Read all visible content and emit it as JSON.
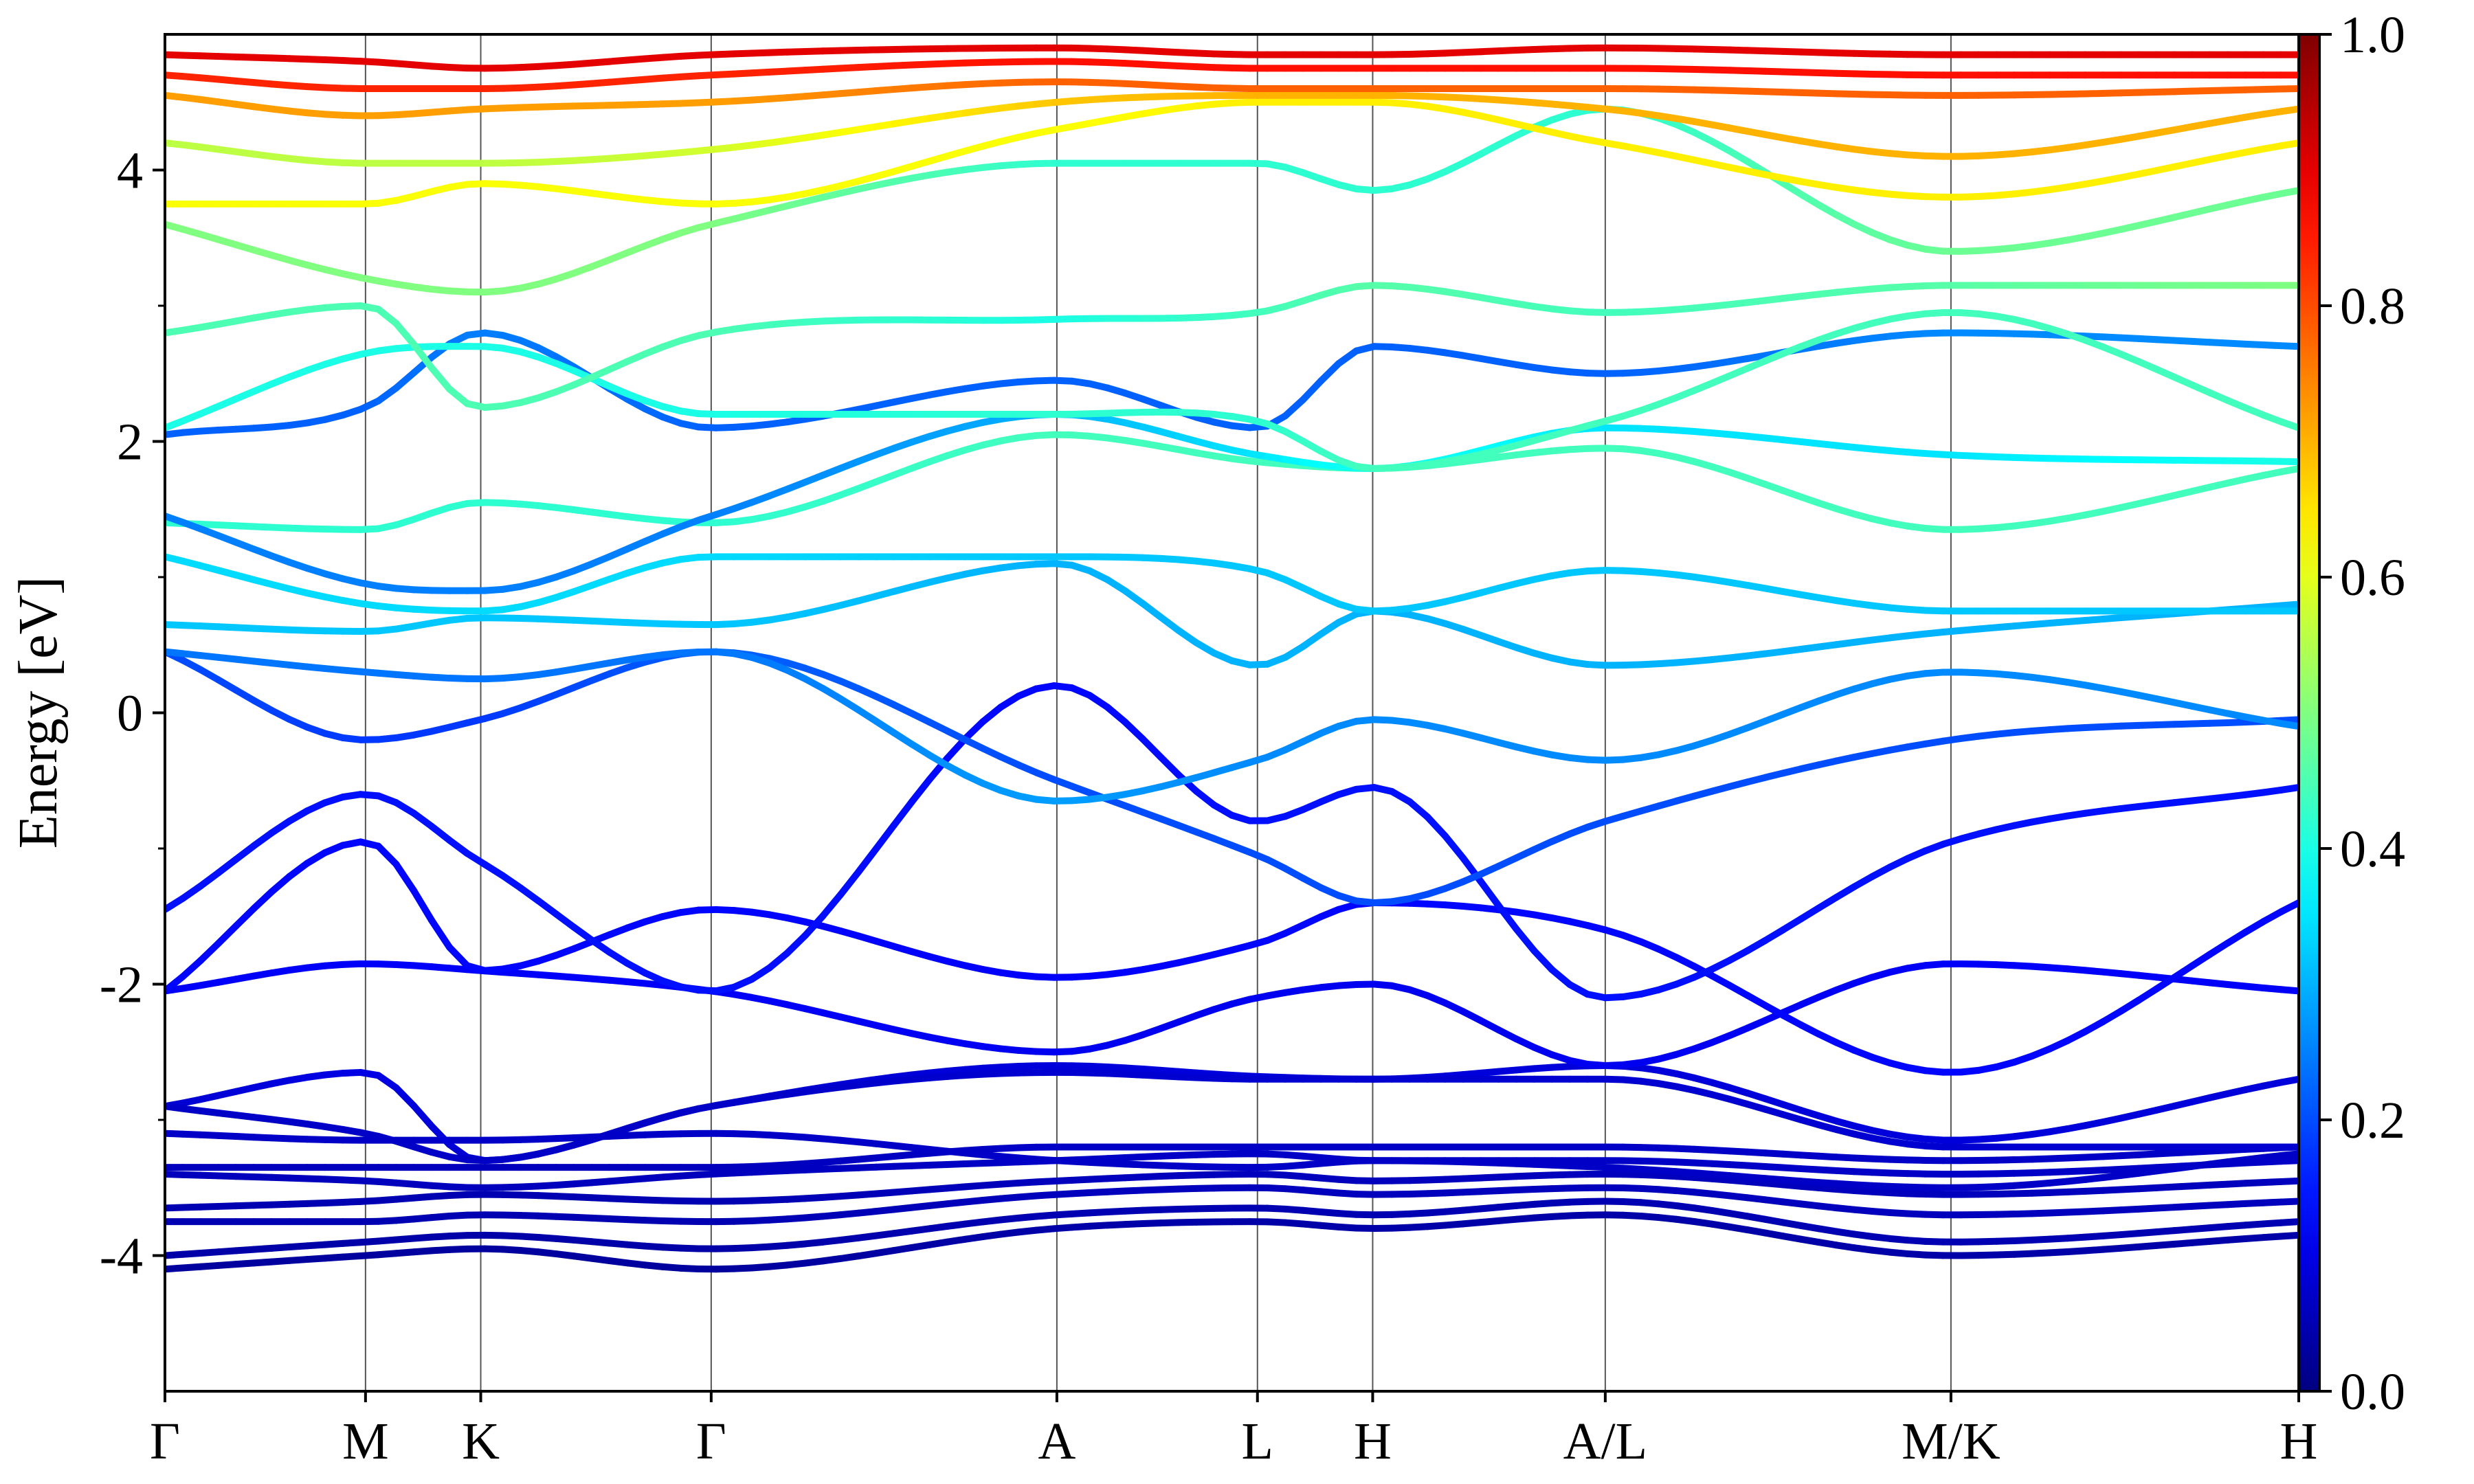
{
  "chart_data": {
    "type": "line",
    "title": "",
    "xlabel": "",
    "ylabel": "Energy [eV]",
    "ylim": [
      -5,
      5
    ],
    "yticks": [
      {
        "value": 4,
        "label": "4"
      },
      {
        "value": 2,
        "label": "2"
      },
      {
        "value": 0,
        "label": "0"
      },
      {
        "value": -2,
        "label": "-2"
      },
      {
        "value": -4,
        "label": "-4"
      }
    ],
    "yminor_ticks": [
      3,
      1,
      -1,
      -3
    ],
    "kpath": [
      {
        "label": "Γ",
        "position": 0.0
      },
      {
        "label": "M",
        "position": 0.094
      },
      {
        "label": "K",
        "position": 0.148
      },
      {
        "label": "Γ",
        "position": 0.256
      },
      {
        "label": "A",
        "position": 0.418
      },
      {
        "label": "L",
        "position": 0.512
      },
      {
        "label": "H",
        "position": 0.566
      },
      {
        "label": "A/L",
        "position": 0.675
      },
      {
        "label": "M/K",
        "position": 0.837
      },
      {
        "label": "H",
        "position": 1.0
      }
    ],
    "colorbar": {
      "colormap": "jet",
      "range": [
        0.0,
        1.0
      ],
      "ticks": [
        {
          "value": 0.0,
          "label": "0.0"
        },
        {
          "value": 0.2,
          "label": "0.2"
        },
        {
          "value": 0.4,
          "label": "0.4"
        },
        {
          "value": 0.6,
          "label": "0.6"
        },
        {
          "value": 0.8,
          "label": "0.8"
        },
        {
          "value": 1.0,
          "label": "1.0"
        }
      ]
    },
    "bands": [
      {
        "k": [
          0,
          0.094,
          0.148,
          0.256,
          0.418,
          0.512,
          0.566,
          0.675,
          0.837,
          1.0
        ],
        "e": [
          -4.1,
          -4.0,
          -3.95,
          -4.1,
          -3.8,
          -3.75,
          -3.8,
          -3.7,
          -4.0,
          -3.85
        ],
        "c": [
          0.03,
          0.03,
          0.03,
          0.03,
          0.04,
          0.04,
          0.04,
          0.04,
          0.04,
          0.04
        ]
      },
      {
        "k": [
          0,
          0.094,
          0.148,
          0.256,
          0.418,
          0.512,
          0.566,
          0.675,
          0.837,
          1.0
        ],
        "e": [
          -4.0,
          -3.9,
          -3.85,
          -3.95,
          -3.7,
          -3.65,
          -3.7,
          -3.6,
          -3.9,
          -3.75
        ],
        "c": [
          0.04,
          0.04,
          0.04,
          0.04,
          0.05,
          0.05,
          0.05,
          0.05,
          0.05,
          0.05
        ]
      },
      {
        "k": [
          0,
          0.094,
          0.148,
          0.256,
          0.418,
          0.512,
          0.566,
          0.675,
          0.837,
          1.0
        ],
        "e": [
          -3.75,
          -3.75,
          -3.7,
          -3.75,
          -3.55,
          -3.5,
          -3.55,
          -3.5,
          -3.7,
          -3.6
        ],
        "c": [
          0.05,
          0.05,
          0.05,
          0.05,
          0.06,
          0.06,
          0.06,
          0.06,
          0.06,
          0.06
        ]
      },
      {
        "k": [
          0,
          0.094,
          0.148,
          0.256,
          0.418,
          0.512,
          0.566,
          0.675,
          0.837,
          1.0
        ],
        "e": [
          -3.65,
          -3.6,
          -3.55,
          -3.6,
          -3.45,
          -3.4,
          -3.45,
          -3.4,
          -3.55,
          -3.45
        ],
        "c": [
          0.05,
          0.05,
          0.05,
          0.05,
          0.06,
          0.06,
          0.06,
          0.06,
          0.06,
          0.06
        ]
      },
      {
        "k": [
          0,
          0.094,
          0.148,
          0.256,
          0.418,
          0.512,
          0.566,
          0.675,
          0.837,
          1.0
        ],
        "e": [
          -3.4,
          -3.45,
          -3.5,
          -3.4,
          -3.3,
          -3.25,
          -3.3,
          -3.3,
          -3.4,
          -3.3
        ],
        "c": [
          0.06,
          0.06,
          0.06,
          0.06,
          0.07,
          0.07,
          0.07,
          0.07,
          0.07,
          0.07
        ]
      },
      {
        "k": [
          0,
          0.094,
          0.148,
          0.256,
          0.418,
          0.512,
          0.566,
          0.675,
          0.837,
          1.0
        ],
        "e": [
          -3.35,
          -3.35,
          -3.35,
          -3.35,
          -3.2,
          -3.2,
          -3.2,
          -3.2,
          -3.3,
          -3.2
        ],
        "c": [
          0.06,
          0.06,
          0.06,
          0.06,
          0.07,
          0.07,
          0.07,
          0.07,
          0.07,
          0.07
        ]
      },
      {
        "k": [
          0,
          0.094,
          0.148,
          0.256,
          0.418,
          0.512,
          0.566,
          0.675,
          0.837,
          1.0
        ],
        "e": [
          -3.1,
          -3.15,
          -3.15,
          -3.1,
          -3.3,
          -3.35,
          -3.3,
          -3.35,
          -3.5,
          -3.25
        ],
        "c": [
          0.07,
          0.07,
          0.07,
          0.07,
          0.07,
          0.07,
          0.07,
          0.07,
          0.07,
          0.07
        ]
      },
      {
        "k": [
          0,
          0.094,
          0.148,
          0.256,
          0.418,
          0.512,
          0.566,
          0.675,
          0.837,
          1.0
        ],
        "e": [
          -2.9,
          -2.65,
          -3.3,
          -2.9,
          -2.6,
          -2.68,
          -2.7,
          -2.6,
          -3.15,
          -2.7
        ],
        "c": [
          0.08,
          0.1,
          0.08,
          0.08,
          0.09,
          0.09,
          0.09,
          0.09,
          0.09,
          0.09
        ]
      },
      {
        "k": [
          0,
          0.094,
          0.148,
          0.256,
          0.418,
          0.512,
          0.566,
          0.675,
          0.837,
          1.0
        ],
        "e": [
          -2.9,
          -3.1,
          -3.3,
          -2.9,
          -2.65,
          -2.7,
          -2.7,
          -2.7,
          -3.2,
          -3.2
        ],
        "c": [
          0.07,
          0.07,
          0.07,
          0.07,
          0.08,
          0.08,
          0.08,
          0.08,
          0.08,
          0.08
        ]
      },
      {
        "k": [
          0,
          0.094,
          0.148,
          0.256,
          0.418,
          0.512,
          0.566,
          0.675,
          0.837,
          1.0
        ],
        "e": [
          -2.05,
          -1.85,
          -1.9,
          -2.05,
          -2.5,
          -2.1,
          -2.0,
          -2.6,
          -1.85,
          -2.05
        ],
        "c": [
          0.12,
          0.12,
          0.12,
          0.12,
          0.11,
          0.11,
          0.11,
          0.11,
          0.12,
          0.12
        ]
      },
      {
        "k": [
          0,
          0.094,
          0.148,
          0.256,
          0.418,
          0.512,
          0.566,
          0.675,
          0.837,
          1.0
        ],
        "e": [
          -2.05,
          -0.95,
          -1.9,
          -1.45,
          -1.95,
          -1.7,
          -1.4,
          -1.6,
          -2.65,
          -1.4
        ],
        "c": [
          0.13,
          0.13,
          0.13,
          0.13,
          0.12,
          0.13,
          0.13,
          0.13,
          0.13,
          0.13
        ]
      },
      {
        "k": [
          0,
          0.094,
          0.148,
          0.256,
          0.418,
          0.512,
          0.566,
          0.675,
          0.837,
          1.0
        ],
        "e": [
          -1.45,
          -0.6,
          -1.1,
          -2.05,
          0.2,
          -0.8,
          -0.55,
          -2.1,
          -0.95,
          -0.55
        ],
        "c": [
          0.14,
          0.14,
          0.14,
          0.14,
          0.13,
          0.14,
          0.14,
          0.14,
          0.14,
          0.14
        ]
      },
      {
        "k": [
          0,
          0.094,
          0.148,
          0.256,
          0.418,
          0.512,
          0.566,
          0.675,
          0.837,
          1.0
        ],
        "e": [
          0.45,
          -0.2,
          -0.05,
          0.45,
          -0.5,
          -1.05,
          -1.4,
          -0.8,
          -0.2,
          -0.05
        ],
        "c": [
          0.2,
          0.18,
          0.18,
          0.22,
          0.2,
          0.2,
          0.2,
          0.2,
          0.2,
          0.2
        ]
      },
      {
        "k": [
          0,
          0.094,
          0.148,
          0.256,
          0.418,
          0.512,
          0.566,
          0.675,
          0.837,
          1.0
        ],
        "e": [
          0.45,
          0.3,
          0.25,
          0.45,
          -0.65,
          -0.35,
          -0.05,
          -0.35,
          0.3,
          -0.1
        ],
        "c": [
          0.24,
          0.24,
          0.24,
          0.24,
          0.28,
          0.26,
          0.26,
          0.26,
          0.26,
          0.26
        ]
      },
      {
        "k": [
          0,
          0.094,
          0.148,
          0.256,
          0.418,
          0.512,
          0.566,
          0.675,
          0.837,
          1.0
        ],
        "e": [
          0.65,
          0.6,
          0.7,
          0.65,
          1.1,
          0.35,
          0.75,
          0.35,
          0.6,
          0.8
        ],
        "c": [
          0.32,
          0.32,
          0.32,
          0.32,
          0.3,
          0.3,
          0.3,
          0.3,
          0.3,
          0.3
        ]
      },
      {
        "k": [
          0,
          0.094,
          0.148,
          0.256,
          0.418,
          0.512,
          0.566,
          0.675,
          0.837,
          1.0
        ],
        "e": [
          1.15,
          0.8,
          0.75,
          1.15,
          1.15,
          1.05,
          0.75,
          1.05,
          0.75,
          0.75
        ],
        "c": [
          0.34,
          0.34,
          0.34,
          0.34,
          0.32,
          0.32,
          0.32,
          0.32,
          0.32,
          0.32
        ]
      },
      {
        "k": [
          0,
          0.094,
          0.148,
          0.256,
          0.418,
          0.512,
          0.566,
          0.675,
          0.837,
          1.0
        ],
        "e": [
          1.4,
          1.35,
          1.55,
          1.4,
          2.05,
          1.85,
          1.8,
          1.95,
          1.35,
          1.8
        ],
        "c": [
          0.42,
          0.42,
          0.42,
          0.42,
          0.44,
          0.44,
          0.44,
          0.44,
          0.44,
          0.44
        ]
      },
      {
        "k": [
          0,
          0.094,
          0.148,
          0.256,
          0.418,
          0.512,
          0.566,
          0.675,
          0.837,
          1.0
        ],
        "e": [
          1.45,
          0.95,
          0.9,
          1.45,
          2.2,
          1.9,
          1.8,
          2.1,
          1.9,
          1.85
        ],
        "c": [
          0.25,
          0.25,
          0.25,
          0.25,
          0.3,
          0.35,
          0.4,
          0.35,
          0.35,
          0.4
        ]
      },
      {
        "k": [
          0,
          0.094,
          0.148,
          0.256,
          0.418,
          0.512,
          0.566,
          0.675,
          0.837,
          1.0
        ],
        "e": [
          2.05,
          2.25,
          2.8,
          2.1,
          2.45,
          2.1,
          2.7,
          2.5,
          2.8,
          2.7
        ],
        "c": [
          0.22,
          0.22,
          0.25,
          0.22,
          0.22,
          0.22,
          0.22,
          0.22,
          0.26,
          0.26
        ]
      },
      {
        "k": [
          0,
          0.094,
          0.148,
          0.256,
          0.418,
          0.512,
          0.566,
          0.675,
          0.837,
          1.0
        ],
        "e": [
          2.1,
          2.65,
          2.7,
          2.2,
          2.2,
          2.15,
          1.8,
          2.15,
          2.95,
          2.1
        ],
        "c": [
          0.4,
          0.4,
          0.4,
          0.4,
          0.42,
          0.42,
          0.44,
          0.44,
          0.44,
          0.44
        ]
      },
      {
        "k": [
          0,
          0.094,
          0.148,
          0.256,
          0.418,
          0.512,
          0.566,
          0.675,
          0.837,
          1.0
        ],
        "e": [
          2.8,
          3.0,
          2.25,
          2.8,
          2.9,
          2.95,
          3.15,
          2.95,
          3.15,
          3.15
        ],
        "c": [
          0.45,
          0.45,
          0.45,
          0.45,
          0.4,
          0.44,
          0.46,
          0.44,
          0.46,
          0.5
        ]
      },
      {
        "k": [
          0,
          0.094,
          0.148,
          0.256,
          0.418,
          0.512,
          0.566,
          0.675,
          0.837,
          1.0
        ],
        "e": [
          3.6,
          3.2,
          3.1,
          3.6,
          4.05,
          4.05,
          3.85,
          4.45,
          3.4,
          3.85
        ],
        "c": [
          0.5,
          0.5,
          0.5,
          0.5,
          0.42,
          0.42,
          0.42,
          0.42,
          0.48,
          0.48
        ]
      },
      {
        "k": [
          0,
          0.094,
          0.148,
          0.256,
          0.418,
          0.512,
          0.566,
          0.675,
          0.837,
          1.0
        ],
        "e": [
          3.75,
          3.75,
          3.9,
          3.75,
          4.3,
          4.5,
          4.5,
          4.2,
          3.8,
          4.2
        ],
        "c": [
          0.62,
          0.62,
          0.62,
          0.62,
          0.62,
          0.64,
          0.64,
          0.64,
          0.64,
          0.64
        ]
      },
      {
        "k": [
          0,
          0.094,
          0.148,
          0.256,
          0.418,
          0.512,
          0.566,
          0.675,
          0.837,
          1.0
        ],
        "e": [
          4.2,
          4.05,
          4.05,
          4.15,
          4.5,
          4.55,
          4.55,
          4.45,
          4.1,
          4.45
        ],
        "c": [
          0.56,
          0.56,
          0.56,
          0.58,
          0.68,
          0.7,
          0.7,
          0.7,
          0.7,
          0.7
        ]
      },
      {
        "k": [
          0,
          0.094,
          0.148,
          0.256,
          0.418,
          0.512,
          0.566,
          0.675,
          0.837,
          1.0
        ],
        "e": [
          4.55,
          4.4,
          4.45,
          4.5,
          4.65,
          4.6,
          4.6,
          4.6,
          4.55,
          4.6
        ],
        "c": [
          0.72,
          0.72,
          0.72,
          0.72,
          0.78,
          0.78,
          0.78,
          0.78,
          0.78,
          0.78
        ]
      },
      {
        "k": [
          0,
          0.094,
          0.148,
          0.256,
          0.418,
          0.512,
          0.566,
          0.675,
          0.837,
          1.0
        ],
        "e": [
          4.7,
          4.6,
          4.6,
          4.7,
          4.8,
          4.75,
          4.75,
          4.75,
          4.7,
          4.7
        ],
        "c": [
          0.84,
          0.84,
          0.84,
          0.84,
          0.86,
          0.86,
          0.86,
          0.86,
          0.86,
          0.86
        ]
      },
      {
        "k": [
          0,
          0.094,
          0.148,
          0.256,
          0.418,
          0.512,
          0.566,
          0.675,
          0.837,
          1.0
        ],
        "e": [
          4.85,
          4.8,
          4.75,
          4.85,
          4.9,
          4.85,
          4.85,
          4.9,
          4.85,
          4.85
        ],
        "c": [
          0.9,
          0.9,
          0.9,
          0.9,
          0.9,
          0.9,
          0.9,
          0.9,
          0.9,
          0.9
        ]
      }
    ]
  }
}
